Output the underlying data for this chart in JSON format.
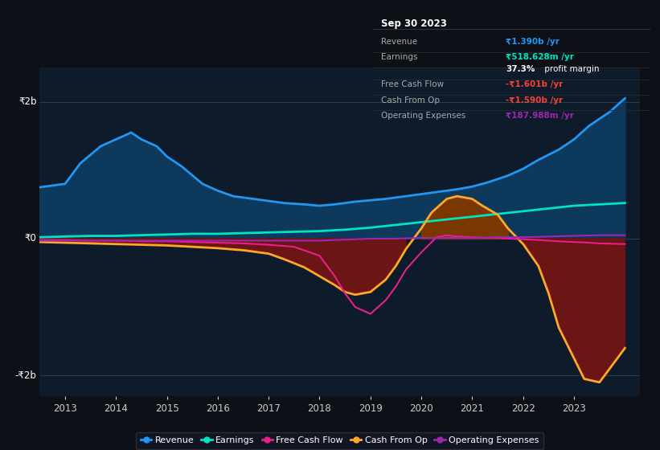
{
  "bg_color": "#0d1117",
  "plot_bg_color": "#0d1b2a",
  "y2b": "₹2b",
  "y0": "₹0",
  "yn2b": "-₹2b",
  "xlim": [
    2012.5,
    2024.3
  ],
  "ylim": [
    -2.3,
    2.5
  ],
  "x_ticks": [
    2013,
    2014,
    2015,
    2016,
    2017,
    2018,
    2019,
    2020,
    2021,
    2022,
    2023
  ],
  "legend_items": [
    {
      "label": "Revenue",
      "color": "#2196f3"
    },
    {
      "label": "Earnings",
      "color": "#00e5c0"
    },
    {
      "label": "Free Cash Flow",
      "color": "#e91e8c"
    },
    {
      "label": "Cash From Op",
      "color": "#ffa726"
    },
    {
      "label": "Operating Expenses",
      "color": "#9c27b0"
    }
  ],
  "info_box": {
    "date": "Sep 30 2023",
    "rows": [
      {
        "label": "Revenue",
        "value": "₹1.390b /yr",
        "value_color": "#2196f3"
      },
      {
        "label": "Earnings",
        "value": "₹518.628m /yr",
        "value_color": "#00e5c0"
      },
      {
        "label": "",
        "value": "37.3% profit margin",
        "value_color": "#ffffff",
        "bold_part": "37.3%"
      },
      {
        "label": "Free Cash Flow",
        "value": "-₹1.601b /yr",
        "value_color": "#f44336"
      },
      {
        "label": "Cash From Op",
        "value": "-₹1.590b /yr",
        "value_color": "#f44336"
      },
      {
        "label": "Operating Expenses",
        "value": "₹187.988m /yr",
        "value_color": "#9c27b0"
      }
    ]
  },
  "revenue": {
    "x": [
      2012.5,
      2013.0,
      2013.3,
      2013.7,
      2014.0,
      2014.3,
      2014.5,
      2014.8,
      2015.0,
      2015.3,
      2015.7,
      2016.0,
      2016.3,
      2016.7,
      2017.0,
      2017.3,
      2017.7,
      2018.0,
      2018.3,
      2018.7,
      2019.0,
      2019.3,
      2019.7,
      2020.0,
      2020.3,
      2020.7,
      2021.0,
      2021.3,
      2021.7,
      2022.0,
      2022.3,
      2022.7,
      2023.0,
      2023.3,
      2023.7,
      2024.0
    ],
    "y": [
      0.75,
      0.8,
      1.1,
      1.35,
      1.45,
      1.55,
      1.45,
      1.35,
      1.2,
      1.05,
      0.8,
      0.7,
      0.62,
      0.58,
      0.55,
      0.52,
      0.5,
      0.48,
      0.5,
      0.54,
      0.56,
      0.58,
      0.62,
      0.65,
      0.68,
      0.72,
      0.76,
      0.82,
      0.92,
      1.02,
      1.15,
      1.3,
      1.45,
      1.65,
      1.85,
      2.05
    ],
    "color": "#2196f3",
    "fill_color": "#0d3a5c",
    "linewidth": 2.0
  },
  "earnings": {
    "x": [
      2012.5,
      2013,
      2013.5,
      2014,
      2014.5,
      2015,
      2015.5,
      2016,
      2016.5,
      2017,
      2017.5,
      2018,
      2018.5,
      2019,
      2019.5,
      2020,
      2020.5,
      2021,
      2021.5,
      2022,
      2022.5,
      2023,
      2023.5,
      2024.0
    ],
    "y": [
      0.02,
      0.03,
      0.04,
      0.04,
      0.05,
      0.06,
      0.07,
      0.07,
      0.08,
      0.09,
      0.1,
      0.11,
      0.13,
      0.16,
      0.2,
      0.24,
      0.28,
      0.32,
      0.36,
      0.4,
      0.44,
      0.48,
      0.5,
      0.52
    ],
    "color": "#00e5c0",
    "linewidth": 2.0
  },
  "free_cash_flow": {
    "x": [
      2012.5,
      2013,
      2013.5,
      2014,
      2014.5,
      2015,
      2015.5,
      2016,
      2016.5,
      2017,
      2017.5,
      2018.0,
      2018.3,
      2018.5,
      2018.7,
      2019.0,
      2019.3,
      2019.5,
      2019.7,
      2020.0,
      2020.3,
      2020.5,
      2020.7,
      2021.0,
      2021.3,
      2021.5,
      2021.7,
      2022.0,
      2022.3,
      2022.5,
      2022.7,
      2023.0,
      2023.3,
      2023.5,
      2024.0
    ],
    "y": [
      -0.02,
      -0.02,
      -0.03,
      -0.03,
      -0.04,
      -0.04,
      -0.05,
      -0.06,
      -0.07,
      -0.09,
      -0.12,
      -0.25,
      -0.55,
      -0.8,
      -1.0,
      -1.1,
      -0.9,
      -0.7,
      -0.45,
      -0.2,
      0.02,
      0.05,
      0.03,
      0.02,
      0.01,
      0.01,
      0.0,
      -0.01,
      -0.02,
      -0.03,
      -0.04,
      -0.05,
      -0.06,
      -0.07,
      -0.08
    ],
    "color": "#e91e8c",
    "linewidth": 1.5
  },
  "cash_from_op": {
    "x": [
      2012.5,
      2013,
      2013.5,
      2014,
      2014.5,
      2015,
      2015.5,
      2016,
      2016.5,
      2017,
      2017.3,
      2017.7,
      2018.0,
      2018.3,
      2018.5,
      2018.7,
      2019.0,
      2019.3,
      2019.5,
      2019.7,
      2020.0,
      2020.2,
      2020.5,
      2020.7,
      2021.0,
      2021.2,
      2021.5,
      2021.7,
      2022.0,
      2022.3,
      2022.5,
      2022.7,
      2023.0,
      2023.2,
      2023.5,
      2024.0
    ],
    "y": [
      -0.05,
      -0.06,
      -0.07,
      -0.08,
      -0.09,
      -0.1,
      -0.12,
      -0.14,
      -0.17,
      -0.22,
      -0.3,
      -0.42,
      -0.55,
      -0.68,
      -0.78,
      -0.82,
      -0.78,
      -0.6,
      -0.4,
      -0.15,
      0.15,
      0.38,
      0.58,
      0.62,
      0.58,
      0.48,
      0.35,
      0.15,
      -0.08,
      -0.4,
      -0.8,
      -1.3,
      -1.75,
      -2.05,
      -2.1,
      -1.6
    ],
    "color": "#ffa726",
    "fill_below_color": "#6b1515",
    "fill_above_color": "#7a3800",
    "linewidth": 2.0
  },
  "operating_expenses": {
    "x": [
      2012.5,
      2013,
      2013.5,
      2014,
      2014.5,
      2015,
      2015.5,
      2016,
      2016.5,
      2017,
      2017.5,
      2018,
      2018.3,
      2018.7,
      2019.0,
      2019.5,
      2020.0,
      2020.5,
      2021.0,
      2021.5,
      2022.0,
      2022.5,
      2023.0,
      2023.5,
      2024.0
    ],
    "y": [
      -0.03,
      -0.03,
      -0.03,
      -0.03,
      -0.03,
      -0.03,
      -0.03,
      -0.03,
      -0.03,
      -0.03,
      -0.03,
      -0.03,
      -0.02,
      -0.01,
      0.0,
      0.0,
      0.01,
      0.01,
      0.01,
      0.02,
      0.02,
      0.03,
      0.04,
      0.05,
      0.05
    ],
    "color": "#9c27b0",
    "linewidth": 1.5
  }
}
